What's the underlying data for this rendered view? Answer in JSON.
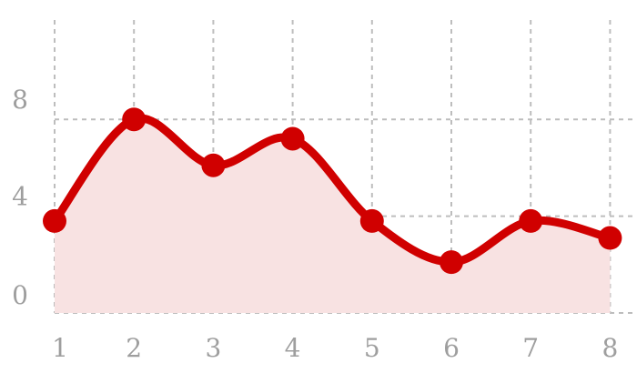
{
  "chart_data": {
    "type": "area",
    "x": [
      1,
      2,
      3,
      4,
      5,
      6,
      7,
      8
    ],
    "x_tick_labels": [
      "1",
      "2",
      "3",
      "4",
      "5",
      "6",
      "7",
      "8"
    ],
    "y_tick_values": [
      0,
      4,
      8
    ],
    "y_tick_labels": [
      "0",
      "4",
      "8"
    ],
    "series": [
      {
        "values": [
          3.8,
          8.0,
          6.1,
          7.2,
          3.8,
          2.1,
          3.8,
          3.1
        ],
        "color": "#d00000",
        "fill_color": "#f8e2e2"
      }
    ],
    "xlim": [
      1,
      8
    ],
    "ylim": [
      0,
      8.5
    ],
    "grid": true,
    "legend": "none"
  }
}
